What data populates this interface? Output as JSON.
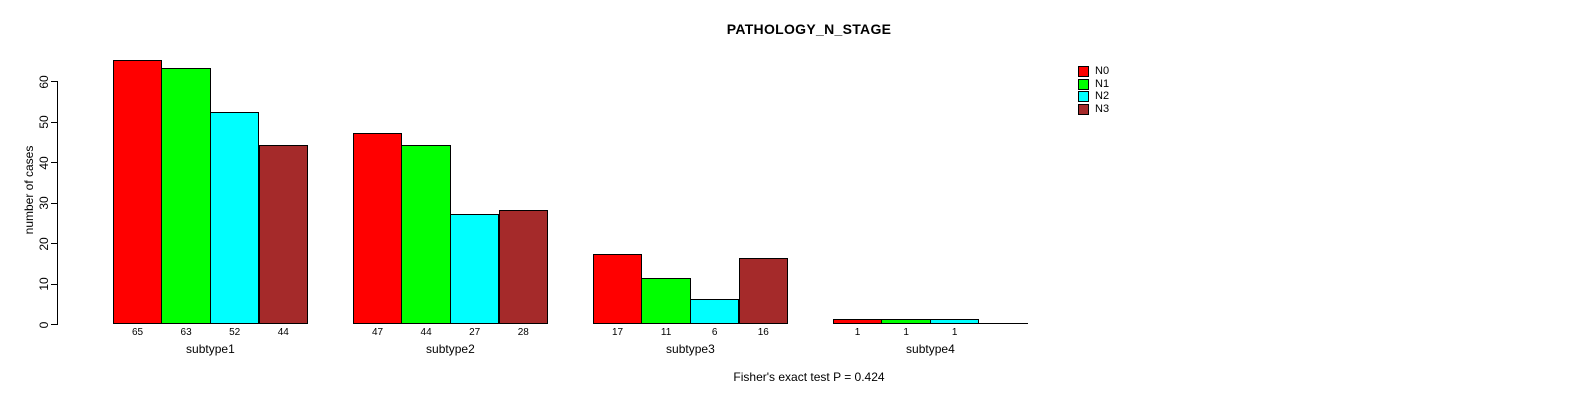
{
  "chart_data": {
    "type": "bar",
    "title": "PATHOLOGY_N_STAGE",
    "ylabel": "number of cases",
    "xlabel": "",
    "ylim": [
      0,
      65
    ],
    "yticks": [
      0,
      10,
      20,
      30,
      40,
      50,
      60
    ],
    "categories": [
      "subtype1",
      "subtype2",
      "subtype3",
      "subtype4"
    ],
    "series": [
      {
        "name": "N0",
        "color": "#ff0000",
        "values": [
          65,
          47,
          17,
          1
        ]
      },
      {
        "name": "N1",
        "color": "#00ff00",
        "values": [
          63,
          44,
          11,
          1
        ]
      },
      {
        "name": "N2",
        "color": "#00ffff",
        "values": [
          52,
          27,
          6,
          1
        ]
      },
      {
        "name": "N3",
        "color": "#a52a2a",
        "values": [
          44,
          28,
          16,
          0
        ]
      }
    ],
    "bar_value_labels_shown": true,
    "legend_position": "top-right",
    "legend_entries": [
      "N0",
      "N1",
      "N2",
      "N3"
    ],
    "annotation": "Fisher's exact test P = 0.424",
    "grid": false,
    "background_color": "#ffffff",
    "axis_color": "#000000"
  }
}
